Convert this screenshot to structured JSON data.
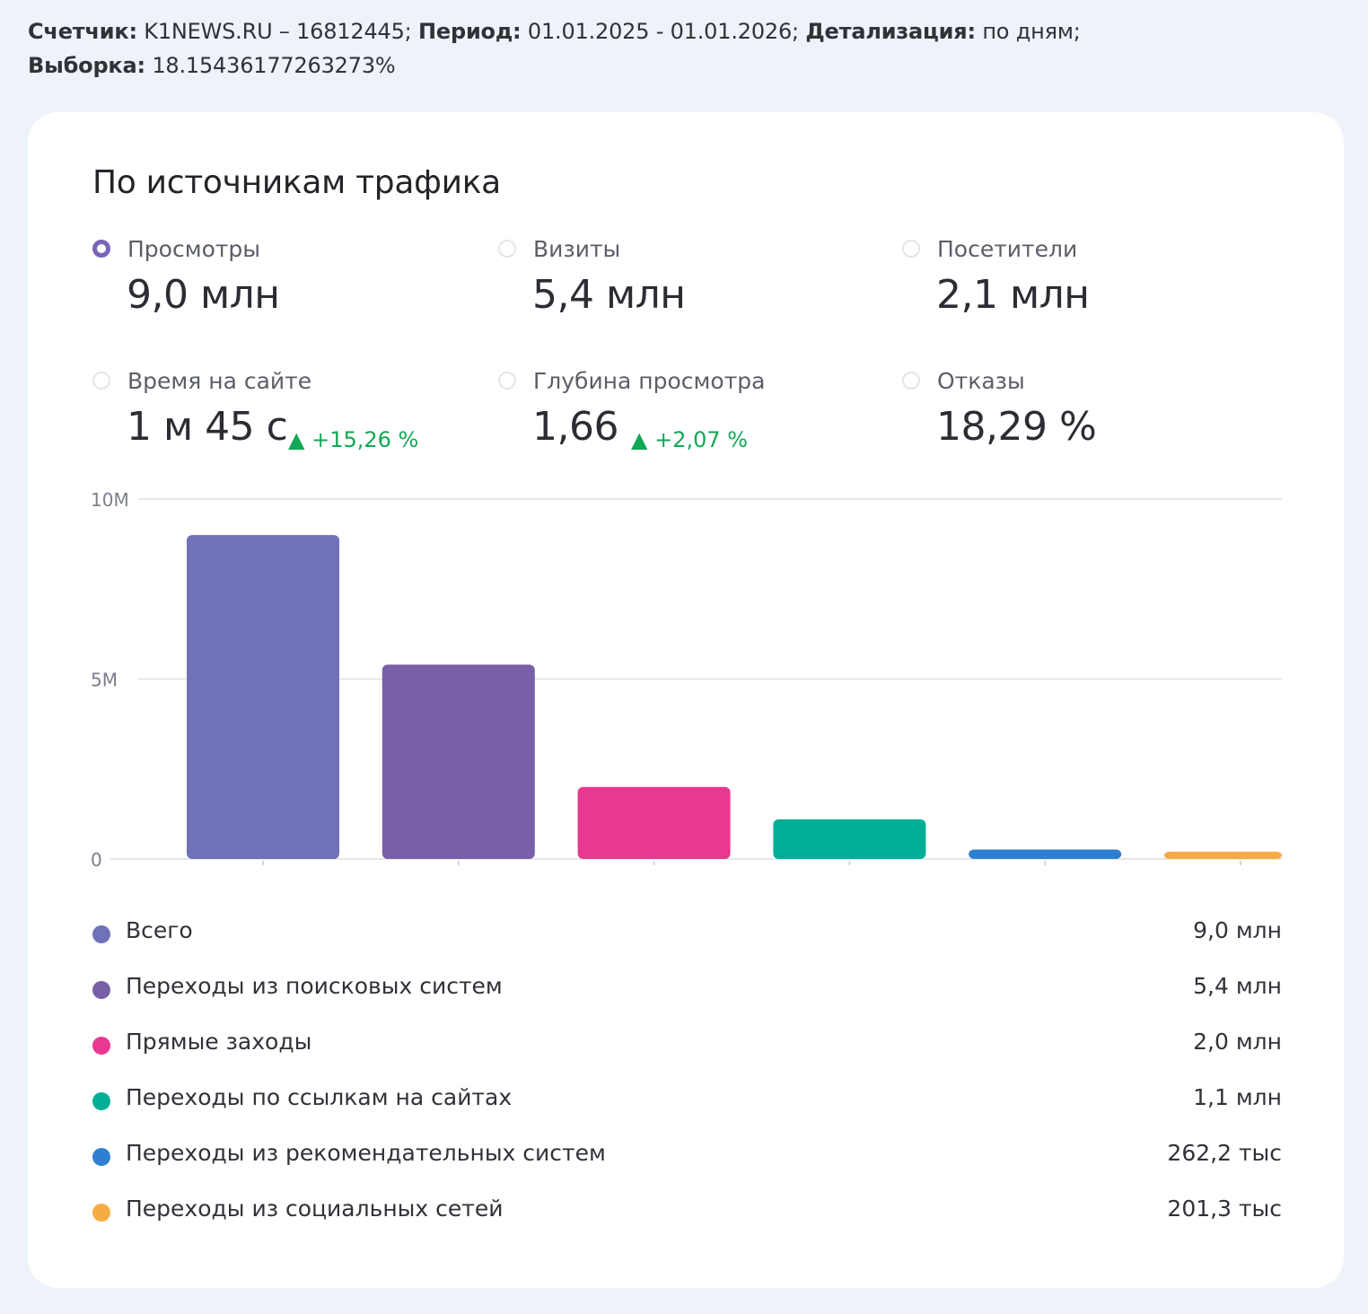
{
  "header": {
    "counter_label": "Счетчик:",
    "counter_value": "K1NEWS.RU – 16812445;",
    "period_label": "Период:",
    "period_value": "01.01.2025 - 01.01.2026;",
    "detail_label": "Детализация:",
    "detail_value": "по дням;",
    "sample_label": "Выборка:",
    "sample_value": "18.15436177263273%"
  },
  "card": {
    "title": "По источникам трафика"
  },
  "metrics": [
    {
      "label": "Просмотры",
      "value": "9,0 млн",
      "change": "",
      "selected": true
    },
    {
      "label": "Визиты",
      "value": "5,4 млн",
      "change": "",
      "selected": false
    },
    {
      "label": "Посетители",
      "value": "2,1 млн",
      "change": "",
      "selected": false
    },
    {
      "label": "Время на сайте",
      "value": "1 м 45 с",
      "change": "▲ +15,26 %",
      "selected": false
    },
    {
      "label": "Глубина просмотра",
      "value": "1,66",
      "change": "▲ +2,07 %",
      "selected": false
    },
    {
      "label": "Отказы",
      "value": "18,29 %",
      "change": "",
      "selected": false
    }
  ],
  "colors": {
    "positive_change": "#12a856",
    "grid": "#e4e6ea"
  },
  "chart_data": {
    "type": "bar",
    "ylim": [
      0,
      10000000
    ],
    "yticks": [
      {
        "value": 0,
        "label": "0"
      },
      {
        "value": 5000000,
        "label": "5M"
      },
      {
        "value": 10000000,
        "label": "10M"
      }
    ],
    "grid": true,
    "series": [
      {
        "name": "Всего",
        "value": 9000000,
        "display": "9,0 млн",
        "color": "#7072b8"
      },
      {
        "name": "Переходы из поисковых систем",
        "value": 5400000,
        "display": "5,4 млн",
        "color": "#7860a8"
      },
      {
        "name": "Прямые заходы",
        "value": 2000000,
        "display": "2,0 млн",
        "color": "#e8388f"
      },
      {
        "name": "Переходы по ссылкам на сайтах",
        "value": 1100000,
        "display": "1,1 млн",
        "color": "#00ae95"
      },
      {
        "name": "Переходы из рекомендательных систем",
        "value": 262200,
        "display": "262,2 тыс",
        "color": "#2f7fd0"
      },
      {
        "name": "Переходы из социальных сетей",
        "value": 201300,
        "display": "201,3 тыс",
        "color": "#f6ac45"
      }
    ]
  }
}
